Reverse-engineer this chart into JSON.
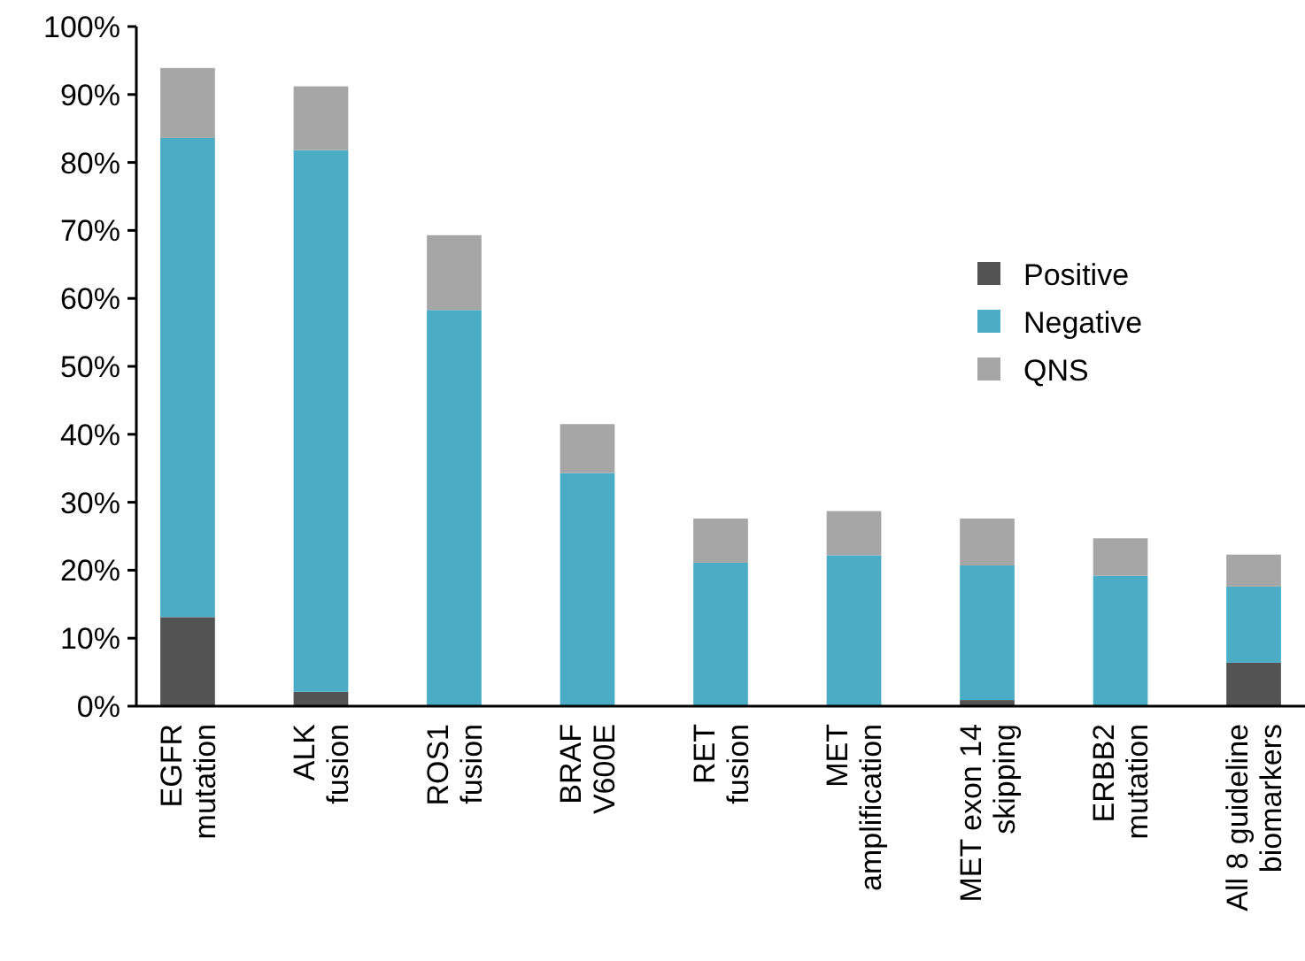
{
  "chart_data": {
    "type": "bar",
    "stacked": true,
    "categories": [
      "EGFR\nmutation",
      "ALK\nfusion",
      "ROS1\nfusion",
      "BRAF\nV600E",
      "RET\nfusion",
      "MET\namplification",
      "MET exon 14\nskipping",
      "ERBB2\nmutation",
      "All 8 guideline\nbiomarkers"
    ],
    "series": [
      {
        "name": "Positive",
        "color": "#535353",
        "values": [
          13.1,
          2.1,
          0,
          0,
          0,
          0,
          0.9,
          0,
          6.4
        ]
      },
      {
        "name": "Negative",
        "color": "#4bacc6",
        "values": [
          70.5,
          79.7,
          58.3,
          34.3,
          21.1,
          22.2,
          19.8,
          19.2,
          11.2
        ]
      },
      {
        "name": "QNS",
        "color": "#a6a6a6",
        "values": [
          10.3,
          9.4,
          11,
          7.2,
          6.5,
          6.5,
          6.9,
          5.5,
          4.7
        ]
      }
    ],
    "ylim": [
      0,
      100
    ],
    "yticks": [
      {
        "value": 0,
        "label": "0%"
      },
      {
        "value": 10,
        "label": "10%"
      },
      {
        "value": 20,
        "label": "20%"
      },
      {
        "value": 30,
        "label": "30%"
      },
      {
        "value": 40,
        "label": "40%"
      },
      {
        "value": 50,
        "label": "50%"
      },
      {
        "value": 60,
        "label": "60%"
      },
      {
        "value": 70,
        "label": "70%"
      },
      {
        "value": 80,
        "label": "80%"
      },
      {
        "value": 90,
        "label": "90%"
      },
      {
        "value": 100,
        "label": "100%"
      }
    ],
    "grid": false,
    "legend": "right"
  }
}
